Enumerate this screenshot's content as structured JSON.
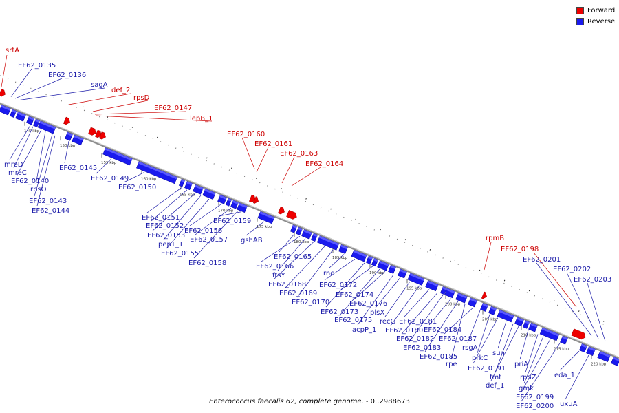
{
  "caption": {
    "organism": "Enterococcus faecalis 62, complete genome.",
    "range": " - 0..2988673"
  },
  "legend": [
    {
      "label": "Forward",
      "color": "#ee0000"
    },
    {
      "label": "Reverse",
      "color": "#1a1aee"
    }
  ],
  "colors": {
    "forward": "#ee0000",
    "reverse": "#1a1aee",
    "forward_text": "#cc0000",
    "reverse_text": "#1a1aa8",
    "backbone": "#8c8c8c"
  },
  "scale_ticks": [
    "145 kbp",
    "150 kbp",
    "155 kbp",
    "160 kbp",
    "165 kbp",
    "170 kbp",
    "175 kbp",
    "180 kbp",
    "185 kbp",
    "190 kbp",
    "195 kbp",
    "200 kbp",
    "205 kbp",
    "210 kbp",
    "215 kbp",
    "220 kbp"
  ],
  "forward_labels": [
    "srtA",
    "def_2",
    "rpsD",
    "EF62_0147",
    "lepB_1",
    "EF62_0160",
    "EF62_0161",
    "EF62_0163",
    "EF62_0164",
    "rpmB",
    "EF62_0198"
  ],
  "reverse_labels": [
    "EF62_0135",
    "EF62_0136",
    "sagA",
    "mreD",
    "mreC",
    "EF62_0140",
    "rpsO",
    "EF62_0143",
    "EF62_0144",
    "EF62_0145",
    "EF62_0149",
    "EF62_0150",
    "EF62_0151",
    "EF62_0152",
    "EF62_0153",
    "pepT_1",
    "EF62_0155",
    "EF62_0156",
    "EF62_0157",
    "EF62_0158",
    "EF62_0159",
    "gshAB",
    "EF62_0165",
    "EF62_0166",
    "ftsY",
    "EF62_0168",
    "EF62_0169",
    "EF62_0170",
    "rnc",
    "EF62_0172",
    "EF62_0173",
    "EF62_0174",
    "EF62_0175",
    "EF62_0176",
    "acpP_1",
    "plsX",
    "recG",
    "EF62_0180",
    "EF62_0181",
    "EF62_0182",
    "EF62_0183",
    "EF62_0184",
    "EF62_0185",
    "rpe",
    "EF62_0187",
    "rsgA",
    "prkC",
    "EF62_0191",
    "sun",
    "fmt",
    "def_1",
    "priA",
    "rpoZ",
    "gmk",
    "EF62_0199",
    "EF62_0200",
    "EF62_0201",
    "EF62_0202",
    "EF62_0203",
    "eda_1",
    "uxuA"
  ]
}
